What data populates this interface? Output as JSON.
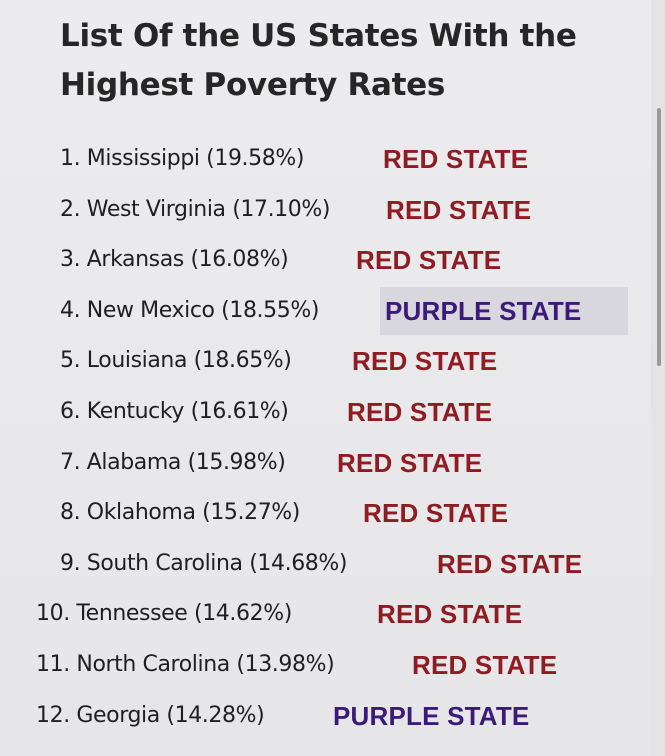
{
  "title": "List Of the US States With the Highest Poverty Rates",
  "colors": {
    "red_state": "#8e1c22",
    "purple_state": "#3b1a7a",
    "text": "#1f1f1f"
  },
  "items": [
    {
      "text": "1. Mississippi (19.58%)",
      "label": "RED STATE",
      "type": "red"
    },
    {
      "text": "2. West Virginia (17.10%)",
      "label": "RED STATE",
      "type": "red"
    },
    {
      "text": "3. Arkansas (16.08%)",
      "label": "RED STATE",
      "type": "red"
    },
    {
      "text": "4. New Mexico (18.55%)",
      "label": "PURPLE STATE",
      "type": "purple"
    },
    {
      "text": "5. Louisiana (18.65%)",
      "label": "RED STATE",
      "type": "red"
    },
    {
      "text": "6. Kentucky (16.61%)",
      "label": "RED STATE",
      "type": "red"
    },
    {
      "text": "7. Alabama (15.98%)",
      "label": "RED STATE",
      "type": "red"
    },
    {
      "text": "8. Oklahoma (15.27%)",
      "label": "RED STATE",
      "type": "red"
    },
    {
      "text": "9. South Carolina (14.68%)",
      "label": "RED STATE",
      "type": "red"
    },
    {
      "text": "10. Tennessee (14.62%)",
      "label": "RED STATE",
      "type": "red"
    },
    {
      "text": "11. North Carolina (13.98%)",
      "label": "RED STATE",
      "type": "red"
    },
    {
      "text": "12. Georgia (14.28%)",
      "label": "PURPLE STATE",
      "type": "purple"
    }
  ]
}
